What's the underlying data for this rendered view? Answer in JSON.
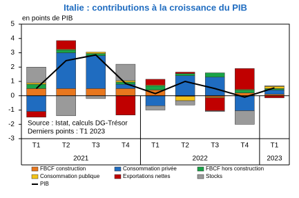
{
  "chart_data": {
    "type": "stacked_bar_line",
    "title": "Italie : contributions à la croissance du PIB",
    "y_label": "en points de PIB",
    "categories": [
      "T1",
      "T2",
      "T3",
      "T4",
      "T1",
      "T2",
      "T3",
      "T4",
      "T1"
    ],
    "x_groups": [
      {
        "label": "2021",
        "count": 4
      },
      {
        "label": "2022",
        "count": 4
      },
      {
        "label": "2023",
        "count": 1
      }
    ],
    "series": [
      {
        "name": "FBCF construction",
        "color": "#e8771e",
        "values": [
          0.5,
          0.5,
          0.5,
          0.5,
          0.4,
          -0.05,
          -0.1,
          0.2,
          0.1
        ]
      },
      {
        "name": "Consommation privée",
        "color": "#1f6cc0",
        "values": [
          -1.1,
          2.5,
          2.3,
          0.3,
          -0.7,
          1.4,
          1.3,
          -1.05,
          0.3
        ]
      },
      {
        "name": "FBCF hors construction",
        "color": "#19a347",
        "values": [
          0.3,
          0.2,
          0.15,
          0.15,
          0.3,
          0.15,
          0.3,
          0.2,
          0.1
        ]
      },
      {
        "name": "Consommation publique",
        "color": "#f2c318",
        "values": [
          0.1,
          0.05,
          0.1,
          0.1,
          0.05,
          -0.3,
          -0.05,
          0.05,
          0.15
        ]
      },
      {
        "name": "Exportations nettes",
        "color": "#c00000",
        "values": [
          -0.4,
          0.6,
          0,
          -1.35,
          0.4,
          0.1,
          -0.9,
          1.45,
          -0.15
        ]
      },
      {
        "name": "Stocks",
        "color": "#9a9a9a",
        "values": [
          1.1,
          -1.4,
          -0.2,
          1.15,
          -0.3,
          -0.3,
          -0.05,
          -0.95,
          0.05
        ]
      }
    ],
    "line": {
      "name": "PIB",
      "color": "#000000",
      "values": [
        0.5,
        2.45,
        2.85,
        0.85,
        0.15,
        1.0,
        0.5,
        -0.1,
        0.55
      ]
    },
    "annotations": [
      "Source : Istat, calculs DG-Trésor",
      "Derniers points : T1 2023"
    ],
    "ylim": [
      -3,
      5
    ],
    "yticks": [
      -3,
      -2,
      -1,
      0,
      1,
      2,
      3,
      4,
      5
    ]
  }
}
